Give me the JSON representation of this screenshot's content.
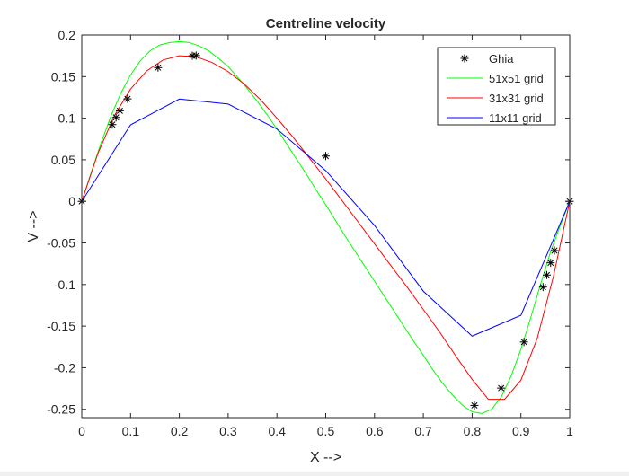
{
  "chart_data": {
    "type": "line",
    "title": "Centreline velocity",
    "xlabel": "X -->",
    "ylabel": "V -->",
    "xlim": [
      0,
      1
    ],
    "ylim": [
      -0.26,
      0.2
    ],
    "xticks": [
      0,
      0.1,
      0.2,
      0.3,
      0.4,
      0.5,
      0.6,
      0.7,
      0.8,
      0.9,
      1
    ],
    "xtick_labels": [
      "0",
      "0.1",
      "0.2",
      "0.3",
      "0.4",
      "0.5",
      "0.6",
      "0.7",
      "0.8",
      "0.9",
      "1"
    ],
    "yticks": [
      -0.25,
      -0.2,
      -0.15,
      -0.1,
      -0.05,
      0,
      0.05,
      0.1,
      0.15,
      0.2
    ],
    "ytick_labels": [
      "-0.25",
      "-0.2",
      "-0.15",
      "-0.1",
      "-0.05",
      "0",
      "0.05",
      "0.1",
      "0.15",
      "0.2"
    ],
    "grid": false,
    "legend_position": "top-right",
    "series": [
      {
        "name": "Ghia",
        "style": "markers",
        "marker": "asterisk",
        "color": "#000000",
        "x": [
          0,
          0.0625,
          0.0703,
          0.0781,
          0.0938,
          0.1563,
          0.2266,
          0.2344,
          0.5,
          0.8047,
          0.8594,
          0.9063,
          0.9453,
          0.9531,
          0.9609,
          0.9688,
          1
        ],
        "y": [
          0,
          0.0923,
          0.1009,
          0.1089,
          0.1232,
          0.1608,
          0.1751,
          0.1753,
          0.0545,
          -0.2453,
          -0.2245,
          -0.1691,
          -0.1031,
          -0.0886,
          -0.0739,
          -0.0591,
          0
        ]
      },
      {
        "name": "51x51 grid",
        "style": "line",
        "color": "#00ff00",
        "x": [
          0,
          0.02,
          0.04,
          0.06,
          0.08,
          0.1,
          0.12,
          0.14,
          0.16,
          0.18,
          0.2,
          0.22,
          0.24,
          0.26,
          0.28,
          0.3,
          0.32,
          0.34,
          0.36,
          0.38,
          0.4,
          0.42,
          0.44,
          0.46,
          0.48,
          0.5,
          0.52,
          0.54,
          0.56,
          0.58,
          0.6,
          0.62,
          0.64,
          0.66,
          0.68,
          0.7,
          0.72,
          0.74,
          0.76,
          0.78,
          0.8,
          0.82,
          0.84,
          0.86,
          0.88,
          0.9,
          0.92,
          0.94,
          0.96,
          0.98,
          1
        ],
        "y": [
          0,
          0.036,
          0.071,
          0.103,
          0.13,
          0.152,
          0.169,
          0.181,
          0.188,
          0.191,
          0.192,
          0.191,
          0.187,
          0.181,
          0.172,
          0.162,
          0.149,
          0.135,
          0.12,
          0.104,
          0.087,
          0.069,
          0.051,
          0.033,
          0.014,
          -0.004,
          -0.023,
          -0.042,
          -0.06,
          -0.078,
          -0.096,
          -0.114,
          -0.132,
          -0.15,
          -0.168,
          -0.185,
          -0.203,
          -0.219,
          -0.233,
          -0.245,
          -0.253,
          -0.255,
          -0.25,
          -0.235,
          -0.21,
          -0.178,
          -0.14,
          -0.1,
          -0.062,
          -0.03,
          0
        ]
      },
      {
        "name": "31x31 grid",
        "style": "line",
        "color": "#ff0000",
        "x": [
          0,
          0.0333,
          0.0667,
          0.1,
          0.1333,
          0.1667,
          0.2,
          0.2333,
          0.2667,
          0.3,
          0.3333,
          0.3667,
          0.4,
          0.4333,
          0.4667,
          0.5,
          0.5333,
          0.5667,
          0.6,
          0.6333,
          0.6667,
          0.7,
          0.7333,
          0.7667,
          0.8,
          0.8333,
          0.8667,
          0.9,
          0.9333,
          0.9667,
          1
        ],
        "y": [
          0,
          0.058,
          0.103,
          0.135,
          0.157,
          0.17,
          0.175,
          0.174,
          0.167,
          0.156,
          0.141,
          0.122,
          0.1,
          0.077,
          0.052,
          0.027,
          0.001,
          -0.025,
          -0.051,
          -0.077,
          -0.103,
          -0.13,
          -0.157,
          -0.186,
          -0.214,
          -0.238,
          -0.238,
          -0.215,
          -0.165,
          -0.09,
          0
        ]
      },
      {
        "name": "11x11 grid",
        "style": "line",
        "color": "#0000ff",
        "x": [
          0,
          0.1,
          0.2,
          0.3,
          0.4,
          0.5,
          0.6,
          0.7,
          0.8,
          0.9,
          1
        ],
        "y": [
          0,
          0.092,
          0.123,
          0.117,
          0.087,
          0.037,
          -0.029,
          -0.108,
          -0.162,
          -0.137,
          0
        ]
      }
    ]
  }
}
